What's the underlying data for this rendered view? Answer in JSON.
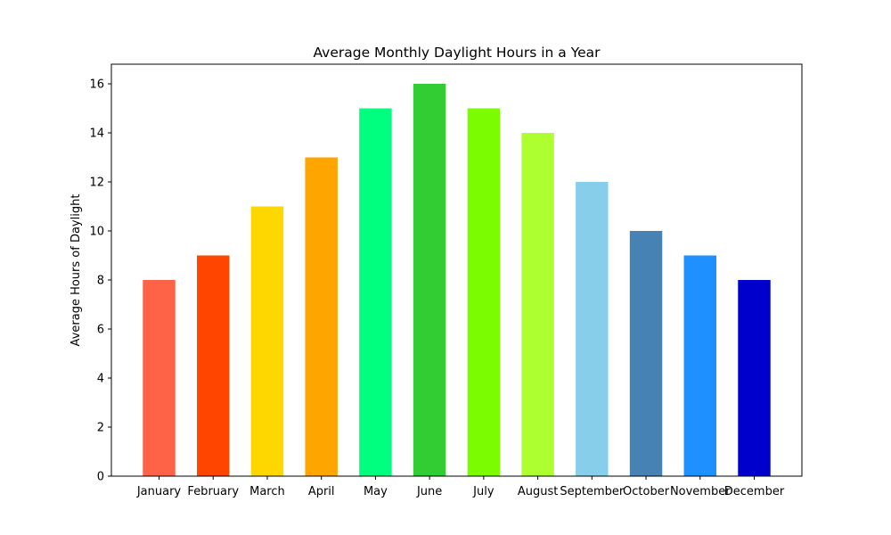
{
  "chart_data": {
    "type": "bar",
    "title": "Average Monthly Daylight Hours in a Year",
    "xlabel": "",
    "ylabel": "Average Hours of Daylight",
    "categories": [
      "January",
      "February",
      "March",
      "April",
      "May",
      "June",
      "July",
      "August",
      "September",
      "October",
      "November",
      "December"
    ],
    "values": [
      8,
      9,
      11,
      13,
      15,
      16,
      15,
      14,
      12,
      10,
      9,
      8
    ],
    "colors": [
      "#ff6347",
      "#ff4500",
      "#ffd700",
      "#ffa500",
      "#00ff7f",
      "#32cd32",
      "#7cfc00",
      "#adff2f",
      "#87ceeb",
      "#4682b4",
      "#1e90ff",
      "#0000cd"
    ],
    "ylim": [
      0,
      16.8
    ],
    "yticks": [
      0,
      2,
      4,
      6,
      8,
      10,
      12,
      14,
      16
    ],
    "grid": false,
    "legend": "none"
  }
}
